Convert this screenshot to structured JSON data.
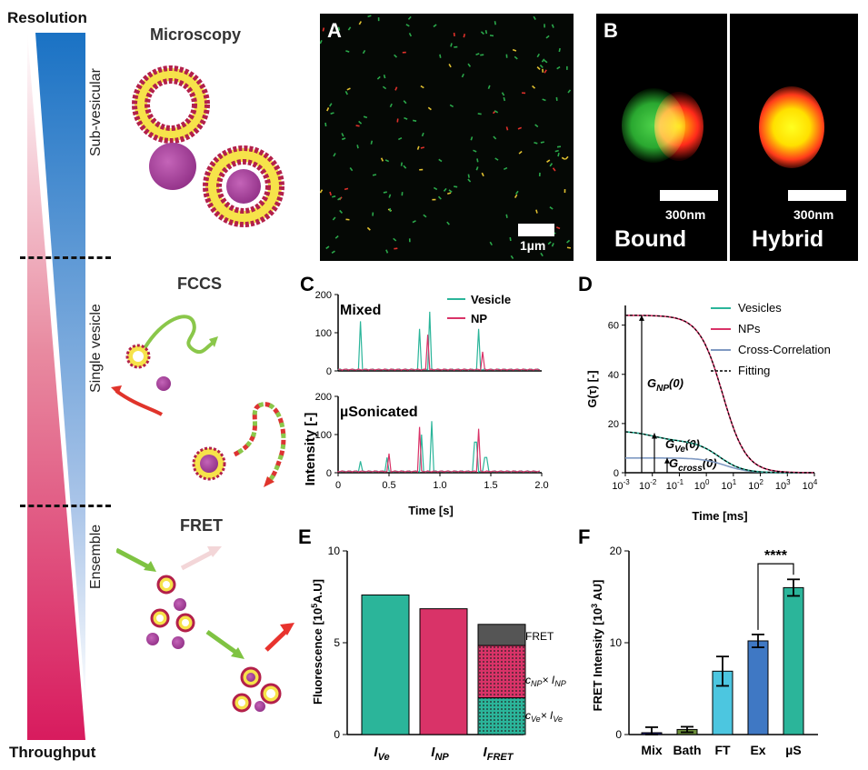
{
  "left": {
    "top_label": "Resolution",
    "bottom_label": "Throughput",
    "levels": [
      "Sub-vesicular",
      "Single vesicle",
      "Ensemble"
    ],
    "methods": [
      "Microscopy",
      "FCCS",
      "FRET"
    ]
  },
  "panelA": {
    "letter": "A",
    "scalebar": "1µm"
  },
  "panelB": {
    "letter": "B",
    "scalebar_left": "300nm",
    "scalebar_right": "300nm",
    "label_left": "Bound",
    "label_right": "Hybrid"
  },
  "colors": {
    "vesicle": "#2bb59a",
    "np": "#d93368",
    "cross": "#7f99c2",
    "fret_dark": "#555555"
  },
  "chart_data": [
    {
      "panel": "C",
      "type": "line",
      "title": "",
      "xlabel": "Time [s]",
      "ylabel": "Intensity [-]",
      "xlim": [
        0,
        2.0
      ],
      "ylim": [
        0,
        200
      ],
      "xticks": [
        "0",
        "0.5",
        "1.0",
        "1.5",
        "2.0"
      ],
      "yticks": [
        "0",
        "100",
        "200"
      ],
      "subplots": [
        {
          "label": "Mixed",
          "series": [
            {
              "name": "Vesicle",
              "peaks": [
                [
                  0.22,
                  130
                ],
                [
                  0.8,
                  110
                ],
                [
                  0.9,
                  155
                ],
                [
                  1.38,
                  110
                ]
              ]
            },
            {
              "name": "NP",
              "peaks": [
                [
                  0.88,
                  95
                ],
                [
                  1.42,
                  50
                ]
              ]
            }
          ]
        },
        {
          "label": "µSonicated",
          "series": [
            {
              "name": "Vesicle",
              "peaks": [
                [
                  0.22,
                  30
                ],
                [
                  0.48,
                  40
                ],
                [
                  0.82,
                  100
                ],
                [
                  0.92,
                  135
                ],
                [
                  1.35,
                  80
                ],
                [
                  1.45,
                  40
                ]
              ]
            },
            {
              "name": "NP",
              "peaks": [
                [
                  0.5,
                  50
                ],
                [
                  0.8,
                  120
                ],
                [
                  1.38,
                  115
                ]
              ]
            }
          ]
        }
      ],
      "legend": [
        "Vesicle",
        "NP"
      ]
    },
    {
      "panel": "D",
      "type": "line",
      "title": "",
      "xlabel": "Time [ms]",
      "ylabel": "G(τ) [-]",
      "xscale": "log",
      "xlim": [
        0.001,
        10000
      ],
      "ylim": [
        0,
        65
      ],
      "xticks": [
        "10",
        "10",
        "10",
        "10",
        "10",
        "10",
        "10",
        "10"
      ],
      "xtick_exp": [
        "-3",
        "-2",
        "-1",
        "0",
        "1",
        "2",
        "3",
        "4"
      ],
      "yticks": [
        "0",
        "20",
        "40",
        "60"
      ],
      "series": [
        {
          "name": "Vesicles",
          "g0": 17,
          "plateau": 13,
          "tau": 3
        },
        {
          "name": "NPs",
          "g0": 64,
          "tau": 4
        },
        {
          "name": "Cross-Correlation",
          "g0": 6,
          "tau": 5
        },
        {
          "name": "Fitting"
        }
      ],
      "annotations": {
        "gnp": "G",
        "gnp_sub": "NP",
        "gnp_tail": "(0)",
        "gve": "G",
        "gve_sub": "Ve",
        "gve_tail": "(0)",
        "gcross": "G",
        "gcross_sub": "cross",
        "gcross_tail": "(0)"
      }
    },
    {
      "panel": "E",
      "type": "bar",
      "ylabel": "Fluorescence [10",
      "ylabel_sup": "5",
      "ylabel_tail": "A.U]",
      "ylim": [
        0,
        10
      ],
      "yticks": [
        "0",
        "5",
        "10"
      ],
      "categories": [
        {
          "main": "I",
          "sub": "Ve"
        },
        {
          "main": "I",
          "sub": "NP"
        },
        {
          "main": "I",
          "sub": "FRET"
        }
      ],
      "values": [
        7.6,
        6.85,
        6.0
      ],
      "stack": [
        {
          "name": "cVe×IVe",
          "value": 2.0
        },
        {
          "name": "cNP×INP",
          "value": 2.85
        },
        {
          "name": "FRET",
          "value": 1.15
        }
      ],
      "stack_labels": {
        "fret": "FRET",
        "cnp": "c",
        "cnp_sub": "NP",
        "cnp_mid": "× I",
        "cnp_sub2": "NP",
        "cve": "c",
        "cve_sub": "Ve",
        "cve_mid": "× I",
        "cve_sub2": "Ve"
      }
    },
    {
      "panel": "F",
      "type": "bar",
      "ylabel": "FRET Intensity [10",
      "ylabel_sup": "3",
      "ylabel_tail": " AU]",
      "ylim": [
        0,
        20
      ],
      "yticks": [
        "0",
        "10",
        "20"
      ],
      "categories": [
        "Mix",
        "Bath",
        "FT",
        "Ex",
        "µS"
      ],
      "values": [
        0.2,
        0.55,
        6.9,
        10.2,
        16.0
      ],
      "errors": [
        0.6,
        0.3,
        1.6,
        0.7,
        0.9
      ],
      "colors": [
        "#1f1f7a",
        "#6b8e3a",
        "#4cc6e0",
        "#3f78c4",
        "#2bb59a"
      ],
      "significance": "****"
    }
  ]
}
